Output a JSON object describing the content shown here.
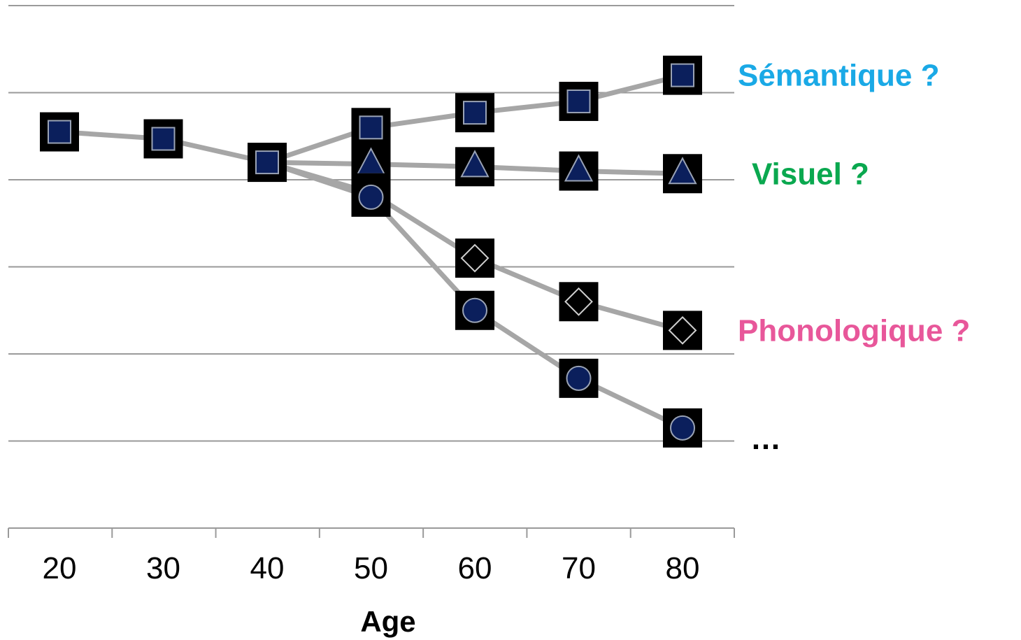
{
  "chart_data": {
    "type": "line",
    "xlabel": "Age",
    "ylabel": "",
    "x": [
      20,
      30,
      40,
      50,
      60,
      70,
      80
    ],
    "ylim": [
      0,
      6
    ],
    "grid": true,
    "legend": "right, inline labels",
    "series": [
      {
        "name": "Sémantique ?",
        "color": "#1aa9e6",
        "marker": "square",
        "x": [
          20,
          30,
          40,
          50,
          60,
          70,
          80
        ],
        "values": [
          4.55,
          4.47,
          4.2,
          4.6,
          4.77,
          4.9,
          5.2
        ]
      },
      {
        "name": "Visuel ?",
        "color": "#0aa84f",
        "marker": "triangle",
        "x": [
          40,
          50,
          60,
          70,
          80
        ],
        "values": [
          4.2,
          4.18,
          4.15,
          4.1,
          4.07
        ]
      },
      {
        "name": "Phonologique ?",
        "color": "#e8579a",
        "marker": "diamond",
        "x": [
          40,
          50,
          60,
          70,
          80
        ],
        "values": [
          4.2,
          3.85,
          3.1,
          2.6,
          2.27
        ]
      },
      {
        "name": "…",
        "color": "#000000",
        "marker": "circle",
        "x": [
          40,
          50,
          60,
          70,
          80
        ],
        "values": [
          4.2,
          3.8,
          2.5,
          1.72,
          1.15
        ]
      }
    ]
  },
  "colors": {
    "line": "#a6a6a6",
    "grid": "#9a9a9a",
    "marker_fill": "#0b1f5c",
    "marker_box": "#000000"
  }
}
